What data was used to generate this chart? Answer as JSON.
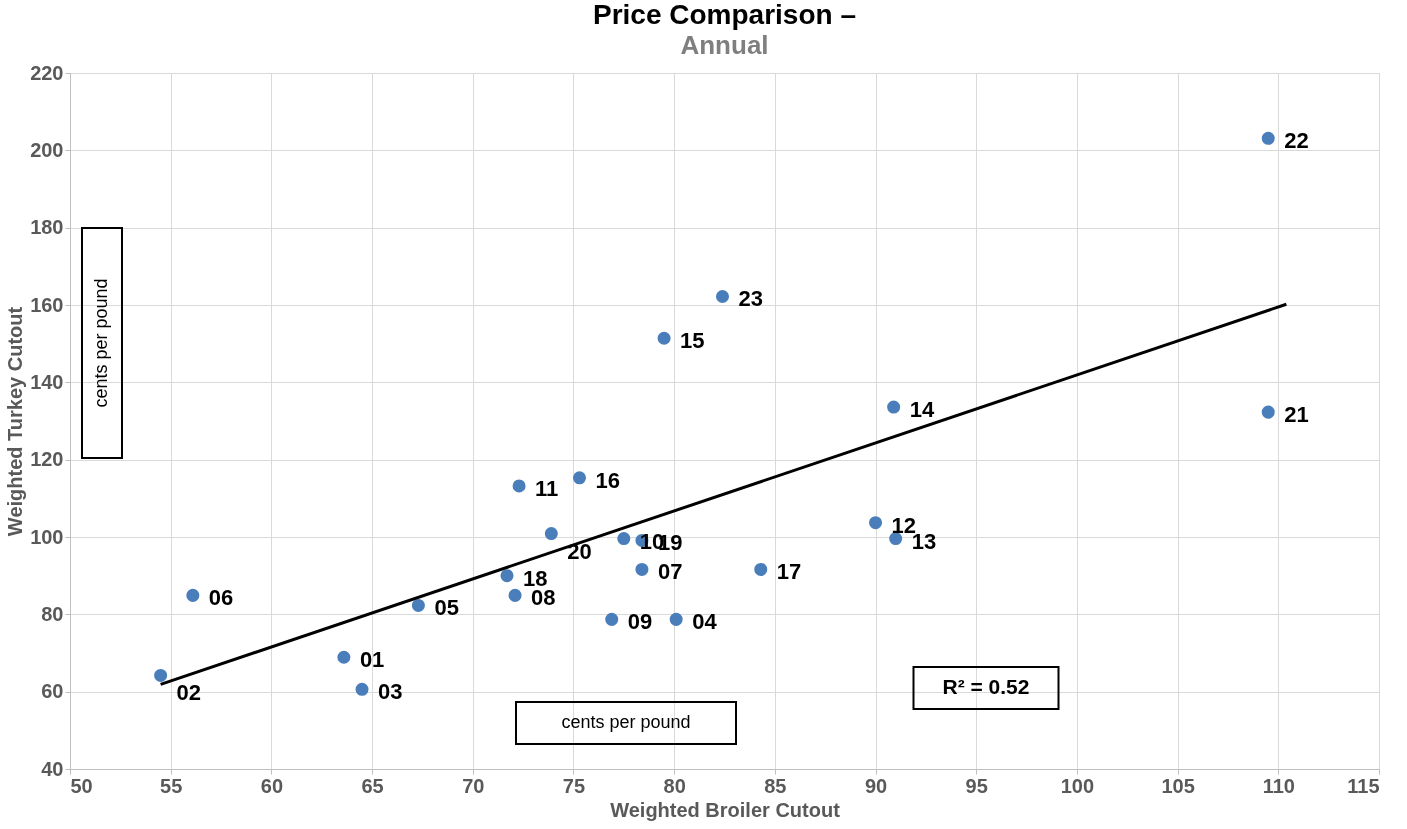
{
  "chart_data": {
    "type": "scatter",
    "title": "Price Comparison –",
    "subtitle": "Annual",
    "xlabel": "Weighted Broiler Cutout",
    "ylabel": "Weighted Turkey Cutout",
    "xlim": [
      50,
      115
    ],
    "xticks": [
      50,
      55,
      60,
      65,
      70,
      75,
      80,
      85,
      90,
      95,
      100,
      105,
      110,
      115
    ],
    "ylim": [
      40,
      220
    ],
    "yticks": [
      40,
      60,
      80,
      100,
      120,
      140,
      160,
      180,
      200,
      220
    ],
    "grid": true,
    "series": [
      {
        "marker": "circle",
        "color": "#4a7ebb",
        "x": [
          63.6,
          54.5,
          64.5,
          80.1,
          67.3,
          56.1,
          78.4,
          72.1,
          76.9,
          77.5,
          72.3,
          90.0,
          91.0,
          90.9,
          79.5,
          75.3,
          84.3,
          71.7,
          78.4,
          73.9,
          109.5,
          109.5,
          82.4
        ],
        "values": [
          68.9,
          64.2,
          60.6,
          78.7,
          82.3,
          84.9,
          91.6,
          84.9,
          78.7,
          99.6,
          113.2,
          103.7,
          99.6,
          133.6,
          151.4,
          115.3,
          91.6,
          90.0,
          99.1,
          100.9,
          132.3,
          203.1,
          162.2
        ]
      },
      {
        "type": "line",
        "marker": "none",
        "color": "#000000",
        "x": [
          54.5,
          110.4
        ],
        "values": [
          61.9,
          160.2
        ]
      }
    ],
    "annotations": [
      "cents per pound",
      "cents per pound",
      "R² = 0.52",
      {
        "text": "01",
        "x": 63.6,
        "y": 68.9
      },
      {
        "text": "02",
        "x": 54.5,
        "y": 64.2
      },
      {
        "text": "03",
        "x": 64.5,
        "y": 60.6
      },
      {
        "text": "04",
        "x": 80.1,
        "y": 78.7
      },
      {
        "text": "05",
        "x": 67.3,
        "y": 82.3
      },
      {
        "text": "06",
        "x": 56.1,
        "y": 84.9
      },
      {
        "text": "07",
        "x": 78.4,
        "y": 91.6
      },
      {
        "text": "08",
        "x": 72.1,
        "y": 84.9
      },
      {
        "text": "09",
        "x": 76.9,
        "y": 78.7
      },
      {
        "text": "10",
        "x": 77.5,
        "y": 99.6
      },
      {
        "text": "11",
        "x": 72.3,
        "y": 113.2
      },
      {
        "text": "12",
        "x": 90.0,
        "y": 103.7
      },
      {
        "text": "13",
        "x": 91.0,
        "y": 99.6
      },
      {
        "text": "14",
        "x": 90.9,
        "y": 133.6
      },
      {
        "text": "15",
        "x": 79.5,
        "y": 151.4
      },
      {
        "text": "16",
        "x": 75.3,
        "y": 115.3
      },
      {
        "text": "17",
        "x": 84.3,
        "y": 91.6
      },
      {
        "text": "18",
        "x": 71.7,
        "y": 90.0
      },
      {
        "text": "19",
        "x": 78.4,
        "y": 99.1
      },
      {
        "text": "20",
        "x": 73.9,
        "y": 100.9
      },
      {
        "text": "21",
        "x": 109.5,
        "y": 132.3
      },
      {
        "text": "22",
        "x": 109.5,
        "y": 203.1
      },
      {
        "text": "23",
        "x": 82.4,
        "y": 162.2
      }
    ]
  }
}
